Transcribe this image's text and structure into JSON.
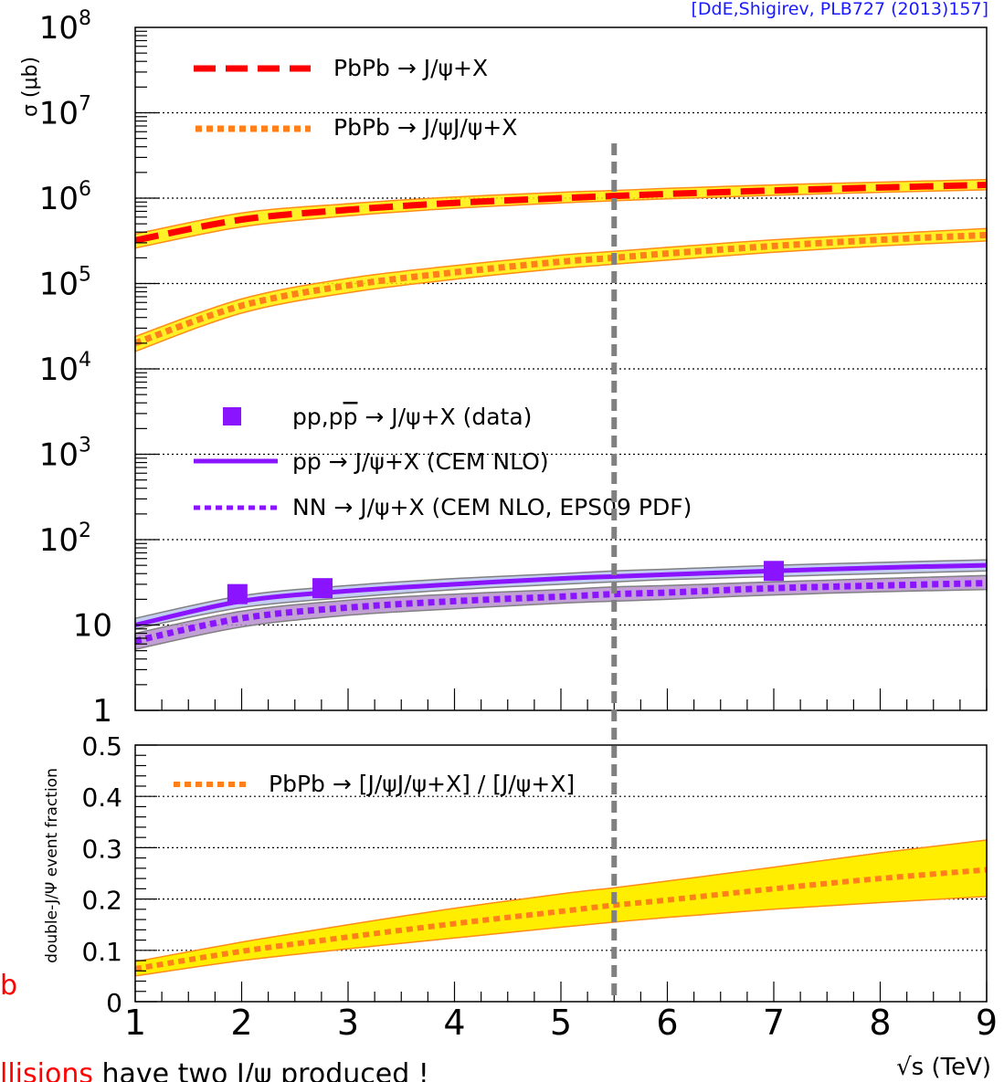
{
  "citation": "[DdE,Shigirev, PLB727 (2013)157]",
  "top_panel": {
    "ylabel": "σ (μb)",
    "y_tick_labels": [
      {
        "base": "10",
        "exp": "8",
        "value": 100000000
      },
      {
        "base": "10",
        "exp": "7",
        "value": 10000000
      },
      {
        "base": "10",
        "exp": "6",
        "value": 1000000
      },
      {
        "base": "10",
        "exp": "5",
        "value": 100000
      },
      {
        "base": "10",
        "exp": "4",
        "value": 10000
      },
      {
        "base": "10",
        "exp": "3",
        "value": 1000
      },
      {
        "base": "10",
        "exp": "2",
        "value": 100
      },
      {
        "base": "10",
        "exp": "",
        "value": 10
      },
      {
        "base": "1",
        "exp": "",
        "value": 1
      }
    ],
    "legend_upper": [
      {
        "label": "PbPb → J/ψ+X",
        "style": "dashed",
        "color": "#ff0000"
      },
      {
        "label": "PbPb → J/ψJ/ψ+X",
        "style": "dotted",
        "color": "#ff7f1a"
      }
    ],
    "legend_lower": [
      {
        "label_pre": "pp,p",
        "label_pbar": "p",
        "label_post": " → J/ψ+X (data)",
        "style": "marker",
        "color": "#8a14ff"
      },
      {
        "label": "pp → J/ψ+X (CEM NLO)",
        "style": "solid",
        "color": "#8a14ff"
      },
      {
        "label": "NN → J/ψ+X (CEM NLO, EPS09 PDF)",
        "style": "dotted",
        "color": "#8a14ff"
      }
    ]
  },
  "bottom_panel": {
    "ylabel": "double-J/Ψ event fraction",
    "y_tick_labels": [
      "0.5",
      "0.4",
      "0.3",
      "0.2",
      "0.1",
      "0"
    ],
    "legend": [
      {
        "label": "PbPb → [J/ψJ/ψ+X] / [J/ψ+X]",
        "style": "dotted",
        "color": "#ff7f1a"
      }
    ]
  },
  "x_tick_labels": [
    "1",
    "2",
    "3",
    "4",
    "5",
    "6",
    "7",
    "8",
    "9"
  ],
  "xlabel": "√s (TeV)",
  "colors": {
    "band_yellow": "#ffee00",
    "band_edge": "#ff8c1a",
    "red": "#ff0000",
    "orange": "#ff7f1a",
    "purple": "#8a14ff",
    "pp_band": "#b9c3ee",
    "nn_band": "#b78fcf",
    "marker_line": "#808080"
  },
  "background_text": {
    "left_fragment": "b",
    "bottom_red": "llisions",
    "bottom_black": " have two J/ψ produced !"
  },
  "chart_data": [
    {
      "type": "line",
      "title": "",
      "xlabel": "√s (TeV)",
      "ylabel": "σ (μb)",
      "xlim": [
        1,
        9
      ],
      "ylim": [
        1,
        100000000
      ],
      "y_scale": "log",
      "grid": "horizontal dotted at decades",
      "legend_position": "top-left and middle-left",
      "series": [
        {
          "name": "PbPb → J/ψ+X",
          "style": "dashed",
          "color": "#ff0000",
          "x": [
            1,
            2,
            3,
            4,
            5,
            5.5,
            6,
            7,
            8,
            9
          ],
          "y": [
            320000,
            560000,
            730000,
            880000,
            1000000,
            1060000,
            1120000,
            1230000,
            1330000,
            1430000
          ],
          "band_low": [
            260000,
            460000,
            620000,
            760000,
            880000,
            930000,
            980000,
            1080000,
            1170000,
            1250000
          ],
          "band_high": [
            380000,
            670000,
            860000,
            1030000,
            1170000,
            1230000,
            1300000,
            1430000,
            1540000,
            1650000
          ]
        },
        {
          "name": "PbPb → J/ψJ/ψ+X",
          "style": "dotted",
          "color": "#ff7f1a",
          "x": [
            1,
            2,
            3,
            4,
            5,
            5.5,
            6,
            7,
            8,
            9
          ],
          "y": [
            20000,
            55000,
            95000,
            135000,
            180000,
            200000,
            225000,
            275000,
            325000,
            370000
          ],
          "band_low": [
            16000,
            45000,
            78000,
            112000,
            150000,
            168000,
            188000,
            232000,
            275000,
            315000
          ],
          "band_high": [
            24000,
            66000,
            115000,
            162000,
            215000,
            238000,
            265000,
            325000,
            380000,
            440000
          ]
        },
        {
          "name": "pp,pp̄ → J/ψ+X (data)",
          "style": "marker",
          "color": "#8a14ff",
          "x": [
            1.96,
            2.76,
            7
          ],
          "y": [
            23,
            27,
            43
          ],
          "yerr": [
            4,
            3,
            4
          ]
        },
        {
          "name": "pp → J/ψ+X (CEM NLO)",
          "style": "solid",
          "color": "#8a14ff",
          "x": [
            1,
            2,
            3,
            4,
            5,
            5.5,
            6,
            7,
            8,
            9
          ],
          "y": [
            10,
            19,
            25,
            30,
            35,
            37,
            39,
            43,
            47,
            50
          ],
          "band_low": [
            9,
            16,
            21,
            26,
            30,
            32,
            34,
            37,
            40,
            43
          ],
          "band_high": [
            12,
            22,
            29,
            35,
            40,
            43,
            45,
            50,
            54,
            58
          ]
        },
        {
          "name": "NN → J/ψ+X (CEM NLO, EPS09 PDF)",
          "style": "dotted",
          "color": "#8a14ff",
          "x": [
            1,
            2,
            3,
            4,
            5,
            5.5,
            6,
            7,
            8,
            9
          ],
          "y": [
            6.5,
            12,
            16,
            19,
            21.5,
            23,
            24,
            27,
            29,
            31
          ],
          "band_low": [
            5.2,
            9.5,
            13,
            15.5,
            18,
            19,
            20,
            22.5,
            24.5,
            26
          ],
          "band_high": [
            8,
            14.5,
            19.5,
            23,
            26,
            28,
            29,
            32,
            35,
            38
          ]
        }
      ],
      "annotations": [
        {
          "type": "vertical-dashed-line",
          "x": 5.5,
          "color": "#808080"
        }
      ]
    },
    {
      "type": "line",
      "title": "",
      "xlabel": "√s (TeV)",
      "ylabel": "double-J/Ψ event fraction",
      "xlim": [
        1,
        9
      ],
      "ylim": [
        0,
        0.5
      ],
      "y_scale": "linear",
      "grid": "horizontal dotted",
      "legend_position": "top-left",
      "series": [
        {
          "name": "PbPb → [J/ψJ/ψ+X] / [J/ψ+X]",
          "style": "dotted",
          "color": "#ff7f1a",
          "x": [
            1,
            2,
            3,
            4,
            5,
            5.5,
            6,
            7,
            8,
            9
          ],
          "y": [
            0.064,
            0.098,
            0.126,
            0.152,
            0.176,
            0.188,
            0.198,
            0.22,
            0.24,
            0.257
          ],
          "band_low": [
            0.05,
            0.08,
            0.103,
            0.124,
            0.145,
            0.155,
            0.164,
            0.18,
            0.193,
            0.205
          ],
          "band_high": [
            0.078,
            0.116,
            0.15,
            0.182,
            0.21,
            0.222,
            0.235,
            0.262,
            0.29,
            0.315
          ]
        }
      ],
      "annotations": [
        {
          "type": "vertical-dashed-line",
          "x": 5.5,
          "color": "#808080"
        }
      ]
    }
  ]
}
